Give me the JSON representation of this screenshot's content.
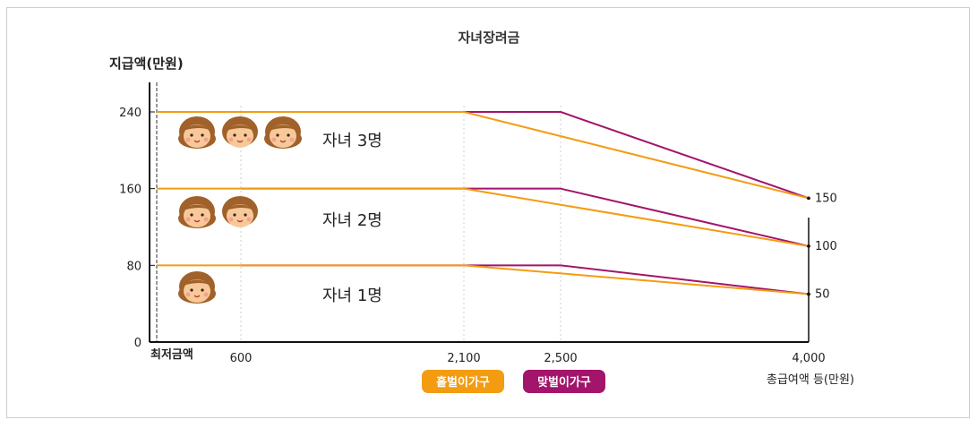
{
  "chart_data": {
    "type": "line",
    "title": "자녀장려금",
    "ylabel": "지급액(만원)",
    "xlabel": "총급여액 등(만원)",
    "x_min_label": "최저금액",
    "ylim": [
      0,
      270
    ],
    "y_ticks": [
      0,
      80,
      160,
      240
    ],
    "x_ticks": [
      600,
      2100,
      2500,
      4000
    ],
    "x_tick_labels": [
      "600",
      "2,100",
      "2,500",
      "4,000"
    ],
    "right_ticks": [
      50,
      100,
      150
    ],
    "right_tick_labels": [
      "50",
      "100",
      "150"
    ],
    "bands": [
      {
        "label": "자녀 3명",
        "faces": 3
      },
      {
        "label": "자녀 2명",
        "faces": 2
      },
      {
        "label": "자녀 1명",
        "faces": 1
      }
    ],
    "legend": [
      {
        "label": "홑벌이가구",
        "color": "#f39c12"
      },
      {
        "label": "맞벌이가구",
        "color": "#a3146b"
      }
    ],
    "series": [
      {
        "name": "홑벌이가구",
        "color": "#f39c12",
        "group": "자녀 3명",
        "points": [
          [
            0,
            240
          ],
          [
            2100,
            240
          ],
          [
            4000,
            150
          ]
        ]
      },
      {
        "name": "맞벌이가구",
        "color": "#a3146b",
        "group": "자녀 3명",
        "points": [
          [
            600,
            240
          ],
          [
            2500,
            240
          ],
          [
            4000,
            150
          ]
        ]
      },
      {
        "name": "홑벌이가구",
        "color": "#f39c12",
        "group": "자녀 2명",
        "points": [
          [
            0,
            160
          ],
          [
            2100,
            160
          ],
          [
            4000,
            100
          ]
        ]
      },
      {
        "name": "맞벌이가구",
        "color": "#a3146b",
        "group": "자녀 2명",
        "points": [
          [
            600,
            160
          ],
          [
            2500,
            160
          ],
          [
            4000,
            100
          ]
        ]
      },
      {
        "name": "홑벌이가구",
        "color": "#f39c12",
        "group": "자녀 1명",
        "points": [
          [
            0,
            80
          ],
          [
            2100,
            80
          ],
          [
            4000,
            50
          ]
        ]
      },
      {
        "name": "맞벌이가구",
        "color": "#a3146b",
        "group": "자녀 1명",
        "points": [
          [
            600,
            80
          ],
          [
            2500,
            80
          ],
          [
            4000,
            50
          ]
        ]
      }
    ]
  }
}
